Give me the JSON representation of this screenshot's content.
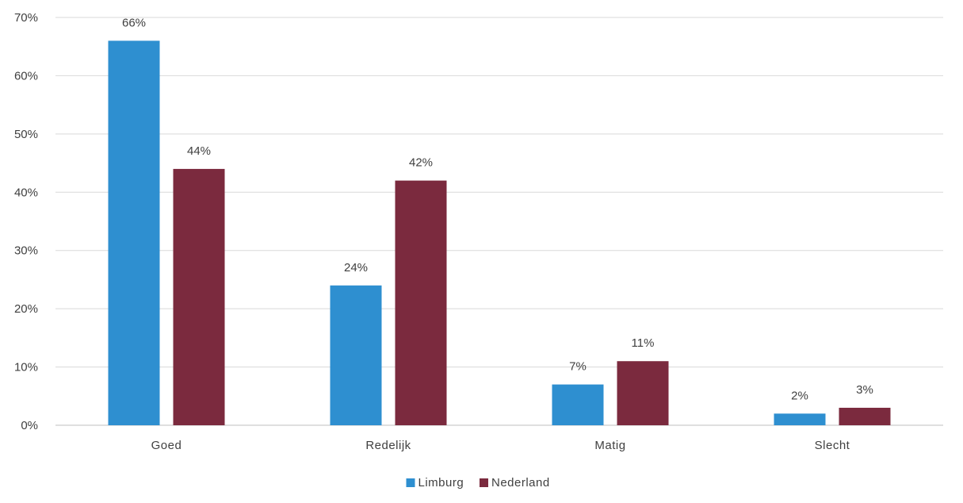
{
  "chart_data": {
    "type": "bar",
    "title": "",
    "xlabel": "",
    "ylabel": "",
    "categories": [
      "Goed",
      "Redelijk",
      "Matig",
      "Slecht"
    ],
    "series": [
      {
        "name": "Limburg",
        "values": [
          66,
          24,
          7,
          2
        ],
        "labels": [
          "66%",
          "24%",
          "7%",
          "2%"
        ],
        "color": "#2e8fd0"
      },
      {
        "name": "Nederland",
        "values": [
          44,
          42,
          11,
          3
        ],
        "labels": [
          "44%",
          "42%",
          "11%",
          "3%"
        ],
        "color": "#7b2a3e"
      }
    ],
    "ylim": [
      0,
      70
    ],
    "yticks": [
      0,
      10,
      20,
      30,
      40,
      50,
      60,
      70
    ],
    "ytick_labels": [
      "0%",
      "10%",
      "20%",
      "30%",
      "40%",
      "50%",
      "60%",
      "70%"
    ],
    "grid": true,
    "legend_position": "bottom-center"
  },
  "colors": {
    "grid": "#d9d9d9",
    "axis": "#bfbfbf",
    "text": "#404040"
  }
}
